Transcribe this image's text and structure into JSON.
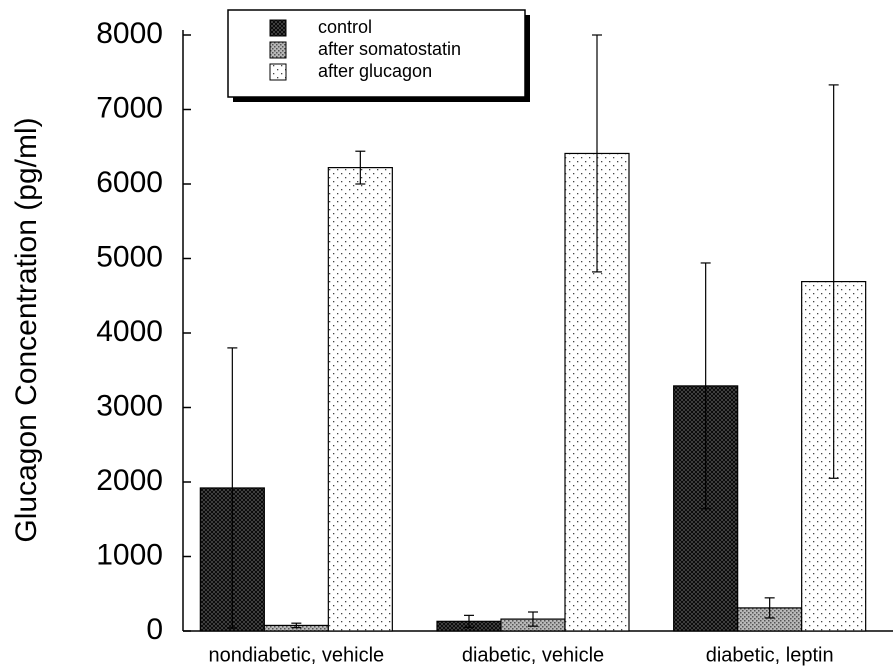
{
  "chart_data": {
    "type": "bar",
    "y_label": "Glucagon Concentration (pg/ml)",
    "categories": [
      "nondiabetic, vehicle",
      "diabetic, vehicle",
      "diabetic, leptin"
    ],
    "series": [
      {
        "name": "control",
        "color": "#4a4a4a",
        "values": [
          1920,
          130,
          3290
        ],
        "errors": [
          1880,
          80,
          1650
        ]
      },
      {
        "name": "after somatostatin",
        "color": "#b8b8b8",
        "values": [
          75,
          160,
          310
        ],
        "errors": [
          30,
          95,
          135
        ]
      },
      {
        "name": "after glucagon",
        "color": "#ffffff",
        "values": [
          6220,
          6410,
          4690
        ],
        "errors": [
          220,
          1590,
          2640
        ]
      }
    ],
    "ylim": [
      0,
      8000
    ],
    "yticks": [
      0,
      1000,
      2000,
      3000,
      4000,
      5000,
      6000,
      7000,
      8000
    ]
  }
}
